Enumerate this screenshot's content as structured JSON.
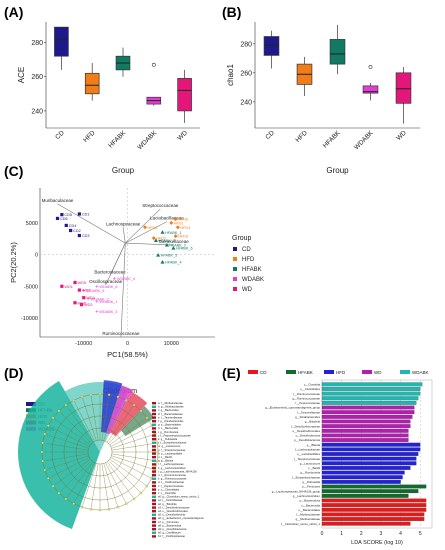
{
  "panels": {
    "a": "(A)",
    "b": "(B)",
    "c": "(C)",
    "d": "(D)",
    "e": "(E)"
  },
  "groups": [
    {
      "name": "CD",
      "color": "#1f1a8c"
    },
    {
      "name": "HFD",
      "color": "#f07d17"
    },
    {
      "name": "HFABK",
      "color": "#117a62"
    },
    {
      "name": "WDABK",
      "color": "#e23fd2"
    },
    {
      "name": "WD",
      "color": "#e3177a"
    }
  ],
  "chart_data": [
    {
      "id": "ace",
      "type": "box",
      "categories": [
        "CD",
        "HFD",
        "HFABK",
        "WDABK",
        "WD"
      ],
      "ylabel": "ACE",
      "xlabel": "Group",
      "yticks": [
        240,
        260,
        280
      ],
      "ylim": [
        230,
        292
      ],
      "boxes": [
        {
          "min": 264,
          "q1": 272,
          "median": 282,
          "q3": 289,
          "max": 289,
          "outliers": []
        },
        {
          "min": 246,
          "q1": 250,
          "median": 255,
          "q3": 262,
          "max": 268,
          "outliers": []
        },
        {
          "min": 260,
          "q1": 264,
          "median": 268,
          "q3": 272,
          "max": 277,
          "outliers": []
        },
        {
          "min": 243,
          "q1": 244,
          "median": 246,
          "q3": 248,
          "max": 248,
          "outliers": [
            267
          ]
        },
        {
          "min": 233,
          "q1": 240,
          "median": 252,
          "q3": 259,
          "max": 264,
          "outliers": []
        }
      ]
    },
    {
      "id": "chao1",
      "type": "box",
      "categories": [
        "CD",
        "HFD",
        "HFABK",
        "WDABK",
        "WD"
      ],
      "ylabel": "chao1",
      "xlabel": "Group",
      "yticks": [
        240,
        260,
        280
      ],
      "ylim": [
        222,
        295
      ],
      "boxes": [
        {
          "min": 263,
          "q1": 272,
          "median": 279,
          "q3": 285,
          "max": 289,
          "outliers": []
        },
        {
          "min": 244,
          "q1": 252,
          "median": 259,
          "q3": 266,
          "max": 271,
          "outliers": []
        },
        {
          "min": 259,
          "q1": 266,
          "median": 273,
          "q3": 283,
          "max": 293,
          "outliers": []
        },
        {
          "min": 241,
          "q1": 246,
          "median": 247,
          "q3": 251,
          "max": 253,
          "outliers": [
            264
          ]
        },
        {
          "min": 225,
          "q1": 239,
          "median": 249,
          "q3": 260,
          "max": 264,
          "outliers": []
        }
      ]
    },
    {
      "id": "pca",
      "type": "scatter",
      "xlabel": "PC1(58.5%)",
      "ylabel": "PC2(20.2%)",
      "xticks": [
        -10000,
        0,
        10000
      ],
      "yticks": [
        5000,
        0,
        -5000,
        -10000
      ],
      "xlim": [
        -20000,
        20000
      ],
      "ylim": [
        -13000,
        10500
      ],
      "legend_title": "Group",
      "points": [
        {
          "g": "CD",
          "x": -15000,
          "y": 6300,
          "label": "CD5"
        },
        {
          "g": "CD",
          "x": -16000,
          "y": 5700,
          "label": "CD6"
        },
        {
          "g": "CD",
          "x": -11000,
          "y": 6400,
          "label": "CD1"
        },
        {
          "g": "CD",
          "x": -14000,
          "y": 4600,
          "label": "CD4"
        },
        {
          "g": "CD",
          "x": -13000,
          "y": 3800,
          "label": "CD2"
        },
        {
          "g": "CD",
          "x": -11000,
          "y": 3000,
          "label": "CD3"
        },
        {
          "g": "HFD",
          "x": 4000,
          "y": 4300,
          "label": "HFD5"
        },
        {
          "g": "HFD",
          "x": 10000,
          "y": 5000,
          "label": "HFD1"
        },
        {
          "g": "HFD",
          "x": 11000,
          "y": 5600,
          "label": "HFD6"
        },
        {
          "g": "HFD",
          "x": 11500,
          "y": 4300,
          "label": "HFD4"
        },
        {
          "g": "HFD",
          "x": 6000,
          "y": 2600,
          "label": "HFD2"
        },
        {
          "g": "HFD",
          "x": 11000,
          "y": 2900,
          "label": "HFD3"
        },
        {
          "g": "HFABK",
          "x": 8000,
          "y": 3500,
          "label": "HFABK_1"
        },
        {
          "g": "HFABK",
          "x": 6500,
          "y": 2200,
          "label": "HFABK_3"
        },
        {
          "g": "HFABK",
          "x": 9000,
          "y": 1500,
          "label": "HFABK_2"
        },
        {
          "g": "HFABK",
          "x": 10500,
          "y": 1000,
          "label": "HFABK_6"
        },
        {
          "g": "HFABK",
          "x": 7000,
          "y": -100,
          "label": "HFABK_5"
        },
        {
          "g": "HFABK",
          "x": 8000,
          "y": -1200,
          "label": "HFABK_4"
        },
        {
          "g": "WDABK",
          "x": -3000,
          "y": -3800,
          "label": "WDABK_4"
        },
        {
          "g": "WDABK",
          "x": -7000,
          "y": -5000,
          "label": "WDABK_6"
        },
        {
          "g": "WDABK",
          "x": -10000,
          "y": -5700,
          "label": "WDABK_5"
        },
        {
          "g": "WDABK",
          "x": -9000,
          "y": -7000,
          "label": "WDABK_2"
        },
        {
          "g": "WDABK",
          "x": -7000,
          "y": -7400,
          "label": "WDABK_1"
        },
        {
          "g": "WDABK",
          "x": -7000,
          "y": -9000,
          "label": "WDABK_3"
        },
        {
          "g": "WD",
          "x": -15000,
          "y": -5000,
          "label": "WD1"
        },
        {
          "g": "WD",
          "x": -12000,
          "y": -4400,
          "label": "WD5"
        },
        {
          "g": "WD",
          "x": -11000,
          "y": -5600,
          "label": "WD2"
        },
        {
          "g": "WD",
          "x": -10000,
          "y": -6800,
          "label": "WD4"
        },
        {
          "g": "WD",
          "x": -12000,
          "y": -7600,
          "label": "WD6"
        },
        {
          "g": "WD",
          "x": -10500,
          "y": -7900,
          "label": "WD3"
        }
      ],
      "loadings": [
        {
          "label": "Muribaculaceae",
          "x": -16000,
          "y": 8000
        },
        {
          "label": "Streptococcaceae",
          "x": 7500,
          "y": 7200
        },
        {
          "label": "Lactobacillaceae",
          "x": 9000,
          "y": 5200
        },
        {
          "label": "Lachnospiraceae",
          "x": -1000,
          "y": 4300
        },
        {
          "label": "Tannerellaceae",
          "x": 10500,
          "y": 1500
        },
        {
          "label": "Bacteroidaceae",
          "x": -4000,
          "y": -3300
        },
        {
          "label": "Oscillospiraceae",
          "x": -5000,
          "y": -4800
        },
        {
          "label": "Ruminococcaceae",
          "x": -1500,
          "y": -13000
        }
      ]
    },
    {
      "id": "lda",
      "type": "bar",
      "xlabel": "LDA SCORE (log 10)",
      "xticks": [
        0,
        1,
        2,
        3,
        4,
        5
      ],
      "xlim": [
        0,
        5.6
      ],
      "legend": [
        "CD",
        "HFABK",
        "HFD",
        "WD",
        "WDABK"
      ],
      "bars": [
        {
          "g": "WDABK",
          "label": "c__Clostridia",
          "value": 5.1
        },
        {
          "g": "WDABK",
          "label": "o__Clostridiales",
          "value": 5.0
        },
        {
          "g": "WDABK",
          "label": "f__Ruminococcaceae",
          "value": 5.0
        },
        {
          "g": "WDABK",
          "label": "g__Ruminococcaceae",
          "value": 4.9
        },
        {
          "g": "WDABK",
          "label": "f__Peptococcaceae",
          "value": 4.8
        },
        {
          "g": "WD",
          "label": "g__[Eubacterium]_coprostanoligenes_group",
          "value": 4.7
        },
        {
          "g": "WD",
          "label": "f__Tannerellaceae",
          "value": 4.7
        },
        {
          "g": "WD",
          "label": "g__Parabacteroides",
          "value": 4.6
        },
        {
          "g": "WD",
          "label": "g__Bilophila",
          "value": 4.5
        },
        {
          "g": "WD",
          "label": "f__Desulfovibrionaceae",
          "value": 4.5
        },
        {
          "g": "WD",
          "label": "o__Desulfovibrionales",
          "value": 4.4
        },
        {
          "g": "WD",
          "label": "c__Desulfovibrionia",
          "value": 4.4
        },
        {
          "g": "WD",
          "label": "p__Desulfobacterota",
          "value": 4.4
        },
        {
          "g": "HFD",
          "label": "g__Blautia",
          "value": 5.0
        },
        {
          "g": "HFD",
          "label": "f__Lachnospiraceae",
          "value": 5.0
        },
        {
          "g": "HFD",
          "label": "o__Lactobacillales",
          "value": 4.9
        },
        {
          "g": "HFD",
          "label": "f__Streptococcaceae",
          "value": 4.8
        },
        {
          "g": "HFD",
          "label": "g__Lactococcus",
          "value": 4.8
        },
        {
          "g": "HFD",
          "label": "c__Bacilli",
          "value": 4.5
        },
        {
          "g": "HFD",
          "label": "g__Romboutsia",
          "value": 4.2
        },
        {
          "g": "HFD",
          "label": "f__Erysipelotrichaceae",
          "value": 4.1
        },
        {
          "g": "HFD",
          "label": "g__Dubosiella",
          "value": 4.0
        },
        {
          "g": "HFABK",
          "label": "p__Firmicutes",
          "value": 5.3
        },
        {
          "g": "HFABK",
          "label": "g__Lachnospiraceae_NK4A136_group",
          "value": 4.9
        },
        {
          "g": "HFABK",
          "label": "g__Lachnoclostridium",
          "value": 4.4
        },
        {
          "g": "CD",
          "label": "p__Bacteroidota",
          "value": 5.3
        },
        {
          "g": "CD",
          "label": "c__Bacteroidia",
          "value": 5.3
        },
        {
          "g": "CD",
          "label": "o__Bacteroidales",
          "value": 5.3
        },
        {
          "g": "CD",
          "label": "f__Muribaculaceae",
          "value": 5.2
        },
        {
          "g": "CD",
          "label": "g__Muribaculaceae",
          "value": 5.2
        },
        {
          "g": "CD",
          "label": "f__Clostridium_sensu_stricto_1",
          "value": 4.5
        }
      ]
    }
  ],
  "cladogram": {
    "title": "Cladogram",
    "legend": [
      "CD",
      "HFABK",
      "HFD",
      "WD",
      "WDABK"
    ],
    "key_entries": [
      "a: f__Muribaculaceae",
      "b: g__Muribaculaceae",
      "c: g__Bacteroides",
      "d: f__Bacteroidaceae",
      "e: f__Tannerellaceae",
      "f: g__Parabacteroides",
      "g: o__Bacteroidales",
      "h: c__Bacteroidia",
      "i: g__Romboutsia",
      "j: f__Peptostreptococcaceae",
      "k: g__Dubosiella",
      "l: f__Erysipelotrichaceae",
      "m: g__Lactococcus",
      "n: f__Streptococcaceae",
      "o: o__Lactobacillales",
      "p: c__Bacilli",
      "q: g__Blautia",
      "r: f__Lachnospiraceae",
      "s: g__Lachnoclostridium",
      "t: g__Lachnospiraceae_NK4A136",
      "u: f__Ruminococcaceae",
      "v: g__Ruminococcaceae",
      "w: f__Oscillospiraceae",
      "x: f__Peptococcaceae",
      "y: o__Clostridiales",
      "z: c__Clostridia",
      "a0: g__Clostridium_sensu_stricto_1",
      "a1: f__Clostridiaceae",
      "a2: g__Bilophila",
      "a3: f__Desulfovibrionaceae",
      "a4: o__Desulfovibrionales",
      "a5: c__Desulfovibrionia",
      "a6: g__Eubacterium_coprostanoligenes",
      "a7: p__Firmicutes",
      "a8: p__Bacteroidota",
      "a9: p__Desulfobacterota",
      "b0: g__Oscillibacter",
      "b1: f__Oscillospiraceae"
    ]
  }
}
